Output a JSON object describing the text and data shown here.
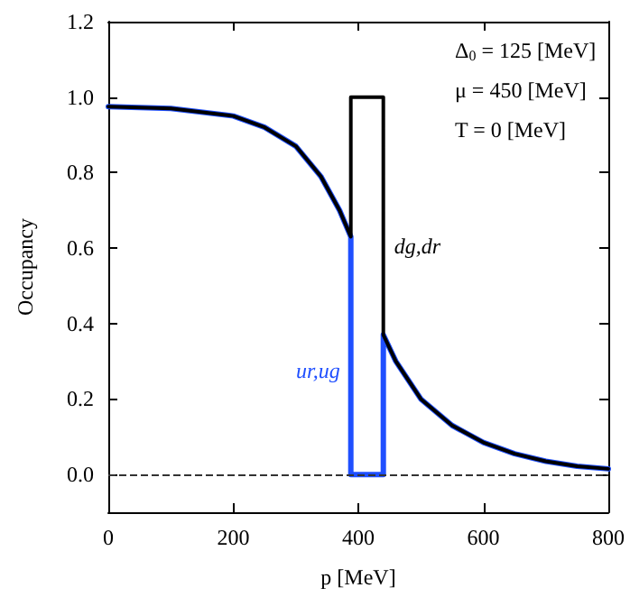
{
  "chart_data": {
    "type": "line",
    "xlabel": "p [MeV]",
    "ylabel": "Occupancy",
    "xlim": [
      0,
      800
    ],
    "ylim": [
      -0.1,
      1.2
    ],
    "xticks": [
      0,
      200,
      400,
      600,
      800
    ],
    "yticks": [
      {
        "value": 0,
        "label": "0.0"
      },
      {
        "value": 0.2,
        "label": "0.2"
      },
      {
        "value": 0.4,
        "label": "0.4"
      },
      {
        "value": 0.6,
        "label": "0.6"
      },
      {
        "value": 0.8,
        "label": "0.8"
      },
      {
        "value": 1,
        "label": "1.0"
      },
      {
        "value": 1.2,
        "label": "1.2"
      }
    ],
    "grid": false,
    "legend": false,
    "marker": "none",
    "line_style": "solid",
    "series": [
      {
        "name": "ur,ug",
        "color": "#1f4fff",
        "x": [
          0,
          100,
          200,
          250,
          300,
          340,
          370,
          388,
          388,
          440,
          440,
          460,
          500,
          550,
          600,
          650,
          700,
          750,
          800
        ],
        "values": [
          0.975,
          0.97,
          0.95,
          0.92,
          0.87,
          0.79,
          0.7,
          0.63,
          0,
          0,
          0.37,
          0.3,
          0.2,
          0.13,
          0.085,
          0.055,
          0.035,
          0.022,
          0.015
        ]
      },
      {
        "name": "dg,dr",
        "color": "#000000",
        "x": [
          0,
          100,
          200,
          250,
          300,
          340,
          370,
          388,
          388,
          440,
          440,
          460,
          500,
          550,
          600,
          650,
          700,
          750,
          800
        ],
        "values": [
          0.975,
          0.97,
          0.95,
          0.92,
          0.87,
          0.79,
          0.7,
          0.63,
          1,
          1,
          0.37,
          0.3,
          0.2,
          0.13,
          0.085,
          0.055,
          0.035,
          0.022,
          0.015
        ]
      }
    ],
    "ref_lines": [
      {
        "axis": "y",
        "value": 0,
        "line_style": "dashed",
        "color": "#333333"
      }
    ],
    "annotations": [
      "Δ$_{0}$ = 125 [MeV]",
      "μ = 450 [MeV]",
      "T = 0 [MeV]"
    ]
  }
}
